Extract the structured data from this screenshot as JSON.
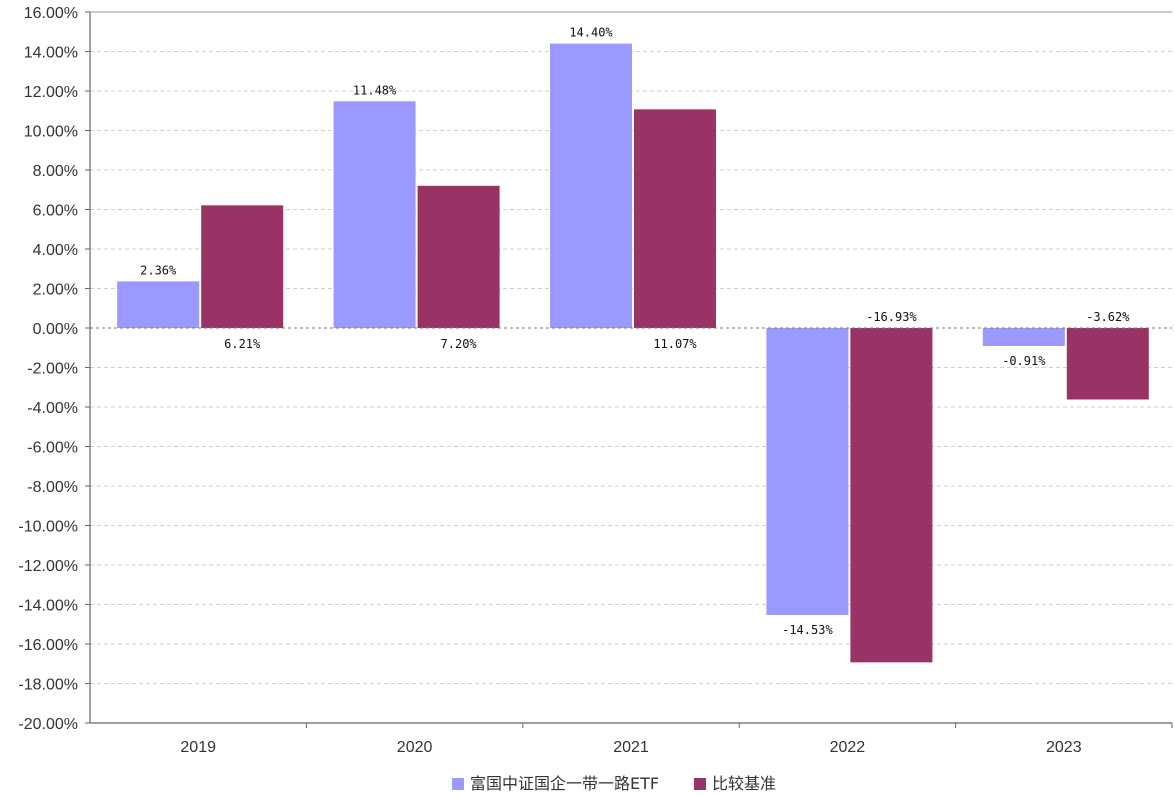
{
  "chart_data": {
    "type": "bar",
    "categories": [
      "2019",
      "2020",
      "2021",
      "2022",
      "2023"
    ],
    "series": [
      {
        "name": "富国中证国企一带一路ETF",
        "values": [
          2.36,
          11.48,
          14.4,
          -14.53,
          -0.91
        ],
        "labels": [
          "2.36%",
          "11.48%",
          "14.40%",
          "-14.53%",
          "-0.91%"
        ],
        "color": "#9999ff"
      },
      {
        "name": "比较基准",
        "values": [
          6.21,
          7.2,
          11.07,
          -16.93,
          -3.62
        ],
        "labels": [
          "6.21%",
          "7.20%",
          "11.07%",
          "-16.93%",
          "-3.62%"
        ],
        "color": "#993366"
      }
    ],
    "ylim": [
      -20,
      16
    ],
    "yticks": [
      16,
      14,
      12,
      10,
      8,
      6,
      4,
      2,
      0,
      -2,
      -4,
      -6,
      -8,
      -10,
      -12,
      -14,
      -16,
      -18,
      -20
    ],
    "ytick_labels": [
      "16.00%",
      "14.00%",
      "12.00%",
      "10.00%",
      "8.00%",
      "6.00%",
      "4.00%",
      "2.00%",
      "0.00%",
      "-2.00%",
      "-4.00%",
      "-6.00%",
      "-8.00%",
      "-10.00%",
      "-12.00%",
      "-14.00%",
      "-16.00%",
      "-18.00%",
      "-20.00%"
    ],
    "grid": true,
    "legend_position": "bottom-center"
  }
}
